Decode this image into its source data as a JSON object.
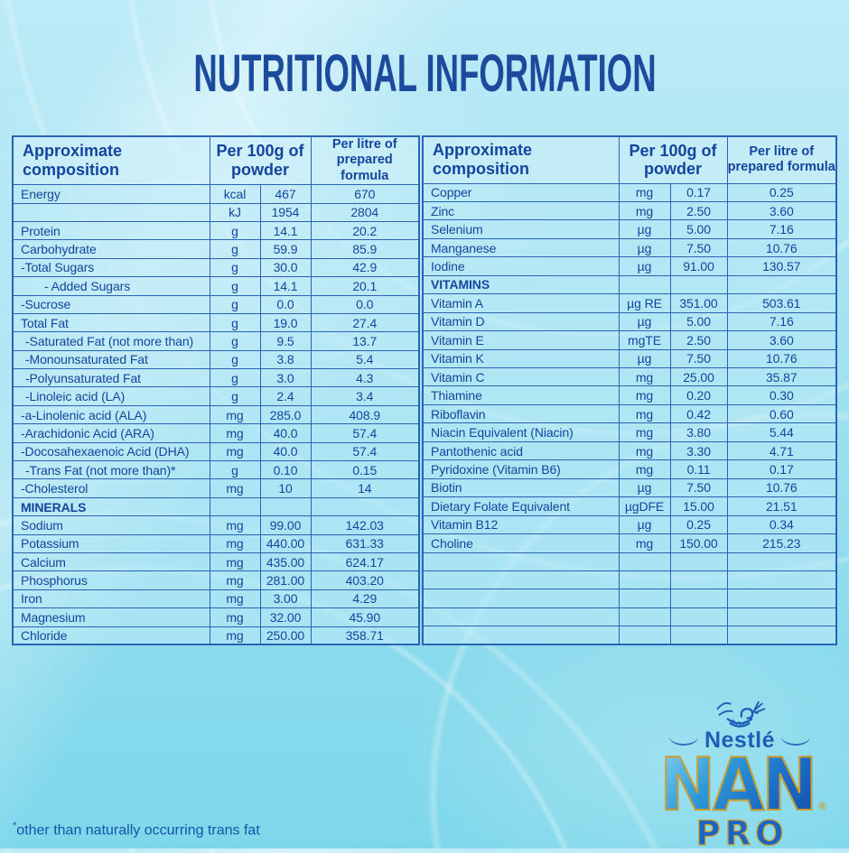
{
  "title": "NUTRITIONAL INFORMATION",
  "footnote_symbol": "*",
  "footnote_text": "other than naturally occurring trans fat",
  "columns": {
    "composition": "Approximate composition",
    "per_100g": "Per 100g of powder",
    "per_litre": "Per litre of prepared formula"
  },
  "left_table": {
    "rows": [
      {
        "label": "Energy",
        "unit": "kcal",
        "per_100g": "467",
        "per_litre": "670"
      },
      {
        "label": "",
        "unit": "kJ",
        "per_100g": "1954",
        "per_litre": "2804"
      },
      {
        "label": "Protein",
        "unit": "g",
        "per_100g": "14.1",
        "per_litre": "20.2"
      },
      {
        "label": "Carbohydrate",
        "unit": "g",
        "per_100g": "59.9",
        "per_litre": "85.9"
      },
      {
        "label": "-Total Sugars",
        "unit": "g",
        "per_100g": "30.0",
        "per_litre": "42.9"
      },
      {
        "label": "- Added Sugars",
        "indent": 2,
        "unit": "g",
        "per_100g": "14.1",
        "per_litre": "20.1"
      },
      {
        "label": "-Sucrose",
        "unit": "g",
        "per_100g": "0.0",
        "per_litre": "0.0"
      },
      {
        "label": "Total Fat",
        "unit": "g",
        "per_100g": "19.0",
        "per_litre": "27.4"
      },
      {
        "label": "-Saturated Fat (not more than)",
        "indent": 1,
        "unit": "g",
        "per_100g": "9.5",
        "per_litre": "13.7"
      },
      {
        "label": "-Monounsaturated Fat",
        "indent": 1,
        "unit": "g",
        "per_100g": "3.8",
        "per_litre": "5.4"
      },
      {
        "label": "-Polyunsaturated Fat",
        "indent": 1,
        "unit": "g",
        "per_100g": "3.0",
        "per_litre": "4.3"
      },
      {
        "label": "-Linoleic acid (LA)",
        "indent": 1,
        "unit": "g",
        "per_100g": "2.4",
        "per_litre": "3.4"
      },
      {
        "label": "-a-Linolenic acid (ALA)",
        "unit": "mg",
        "per_100g": "285.0",
        "per_litre": "408.9"
      },
      {
        "label": "-Arachidonic Acid (ARA)",
        "unit": "mg",
        "per_100g": "40.0",
        "per_litre": "57.4"
      },
      {
        "label": "-Docosahexaenoic Acid (DHA)",
        "unit": "mg",
        "per_100g": "40.0",
        "per_litre": "57.4"
      },
      {
        "label": "-Trans Fat (not more than)*",
        "indent": 1,
        "unit": "g",
        "per_100g": "0.10",
        "per_litre": "0.15"
      },
      {
        "label": "-Cholesterol",
        "unit": "mg",
        "per_100g": "10",
        "per_litre": "14"
      },
      {
        "label": "MINERALS",
        "bold": true,
        "unit": "",
        "per_100g": "",
        "per_litre": ""
      },
      {
        "label": "Sodium",
        "unit": "mg",
        "per_100g": "99.00",
        "per_litre": "142.03"
      },
      {
        "label": "Potassium",
        "unit": "mg",
        "per_100g": "440.00",
        "per_litre": "631.33"
      },
      {
        "label": "Calcium",
        "unit": "mg",
        "per_100g": "435.00",
        "per_litre": "624.17"
      },
      {
        "label": "Phosphorus",
        "unit": "mg",
        "per_100g": "281.00",
        "per_litre": "403.20"
      },
      {
        "label": "Iron",
        "unit": "mg",
        "per_100g": "3.00",
        "per_litre": "4.29"
      },
      {
        "label": "Magnesium",
        "unit": "mg",
        "per_100g": "32.00",
        "per_litre": "45.90"
      },
      {
        "label": "Chloride",
        "unit": "mg",
        "per_100g": "250.00",
        "per_litre": "358.71"
      }
    ]
  },
  "right_table": {
    "rows": [
      {
        "label": "Copper",
        "unit": "mg",
        "per_100g": "0.17",
        "per_litre": "0.25"
      },
      {
        "label": "Zinc",
        "unit": "mg",
        "per_100g": "2.50",
        "per_litre": "3.60"
      },
      {
        "label": "Selenium",
        "unit": "µg",
        "per_100g": "5.00",
        "per_litre": "7.16"
      },
      {
        "label": "Manganese",
        "unit": "µg",
        "per_100g": "7.50",
        "per_litre": "10.76"
      },
      {
        "label": "Iodine",
        "unit": "µg",
        "per_100g": "91.00",
        "per_litre": "130.57"
      },
      {
        "label": "VITAMINS",
        "bold": true,
        "unit": "",
        "per_100g": "",
        "per_litre": ""
      },
      {
        "label": "Vitamin A",
        "unit": "µg RE",
        "per_100g": "351.00",
        "per_litre": "503.61"
      },
      {
        "label": "Vitamin D",
        "unit": "µg",
        "per_100g": "5.00",
        "per_litre": "7.16"
      },
      {
        "label": "Vitamin E",
        "unit": "mgTE",
        "per_100g": "2.50",
        "per_litre": "3.60"
      },
      {
        "label": "Vitamin K",
        "unit": "µg",
        "per_100g": "7.50",
        "per_litre": "10.76"
      },
      {
        "label": "Vitamin C",
        "unit": "mg",
        "per_100g": "25.00",
        "per_litre": "35.87"
      },
      {
        "label": "Thiamine",
        "unit": "mg",
        "per_100g": "0.20",
        "per_litre": "0.30"
      },
      {
        "label": "Riboflavin",
        "unit": "mg",
        "per_100g": "0.42",
        "per_litre": "0.60"
      },
      {
        "label": "Niacin Equivalent (Niacin)",
        "unit": "mg",
        "per_100g": "3.80",
        "per_litre": "5.44"
      },
      {
        "label": "Pantothenic acid",
        "unit": "mg",
        "per_100g": "3.30",
        "per_litre": "4.71"
      },
      {
        "label": "Pyridoxine (Vitamin B6)",
        "unit": "mg",
        "per_100g": "0.11",
        "per_litre": "0.17"
      },
      {
        "label": "Biotin",
        "unit": "µg",
        "per_100g": "7.50",
        "per_litre": "10.76"
      },
      {
        "label": "Dietary Folate Equivalent",
        "unit": "µgDFE",
        "per_100g": "15.00",
        "per_litre": "21.51"
      },
      {
        "label": "Vitamin B12",
        "unit": "µg",
        "per_100g": "0.25",
        "per_litre": "0.34"
      },
      {
        "label": "Choline",
        "unit": "mg",
        "per_100g": "150.00",
        "per_litre": "215.23"
      },
      {
        "label": "",
        "unit": "",
        "per_100g": "",
        "per_litre": ""
      },
      {
        "label": "",
        "unit": "",
        "per_100g": "",
        "per_litre": ""
      },
      {
        "label": "",
        "unit": "",
        "per_100g": "",
        "per_litre": ""
      },
      {
        "label": "",
        "unit": "",
        "per_100g": "",
        "per_litre": ""
      },
      {
        "label": "",
        "unit": "",
        "per_100g": "",
        "per_litre": ""
      }
    ]
  },
  "logo": {
    "brand": "Nestlé",
    "product": "NAN",
    "reg_mark": "®",
    "sub_brand": "PRO"
  },
  "colors": {
    "title_text": "#1c4a9c",
    "table_text": "#14459e",
    "table_border": "#2a62b4",
    "cell_background": "#b8e7f4",
    "background_top": "#bdebf7",
    "background_bottom": "#7dd7ea",
    "logo_blue": "#1a64c4",
    "logo_gold": "#cf9d28"
  }
}
